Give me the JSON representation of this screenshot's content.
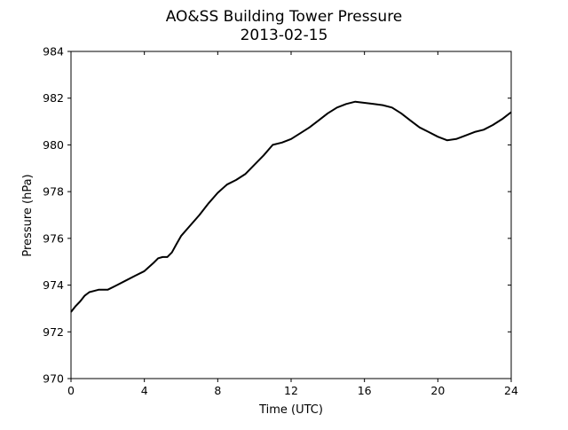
{
  "chart_data": {
    "type": "line",
    "title": "AO&SS Building Tower Pressure",
    "subtitle": "2013-02-15",
    "xlabel": "Time (UTC)",
    "ylabel": "Pressure (hPa)",
    "xlim": [
      0,
      24
    ],
    "ylim": [
      970,
      984
    ],
    "xticks": [
      0,
      4,
      8,
      12,
      16,
      20,
      24
    ],
    "yticks": [
      970,
      972,
      974,
      976,
      978,
      980,
      982,
      984
    ],
    "grid": false,
    "line_color": "#000000",
    "series": [
      {
        "x": [
          0,
          0.25,
          0.5,
          0.75,
          1,
          1.25,
          1.5,
          2,
          2.5,
          3,
          3.5,
          4,
          4.5,
          4.75,
          5,
          5.25,
          5.5,
          5.75,
          6,
          6.5,
          7,
          7.5,
          8,
          8.5,
          9,
          9.5,
          10,
          10.5,
          11,
          11.5,
          12,
          12.5,
          13,
          13.5,
          14,
          14.5,
          15,
          15.5,
          16,
          16.5,
          17,
          17.5,
          18,
          18.5,
          19,
          19.5,
          20,
          20.5,
          21,
          21.5,
          22,
          22.5,
          23,
          23.5,
          24
        ],
        "y": [
          972.85,
          973.1,
          973.3,
          973.55,
          973.7,
          973.75,
          973.8,
          973.8,
          974.0,
          974.2,
          974.4,
          974.6,
          974.95,
          975.15,
          975.2,
          975.2,
          975.4,
          975.75,
          976.1,
          976.55,
          977.0,
          977.5,
          977.95,
          978.3,
          978.5,
          978.75,
          979.15,
          979.55,
          980.0,
          980.1,
          980.25,
          980.5,
          980.75,
          981.05,
          981.35,
          981.6,
          981.75,
          981.85,
          981.8,
          981.75,
          981.7,
          981.6,
          981.35,
          981.05,
          980.75,
          980.55,
          980.35,
          980.2,
          980.25,
          980.4,
          980.55,
          980.65,
          980.85,
          981.1,
          981.4
        ]
      }
    ]
  }
}
